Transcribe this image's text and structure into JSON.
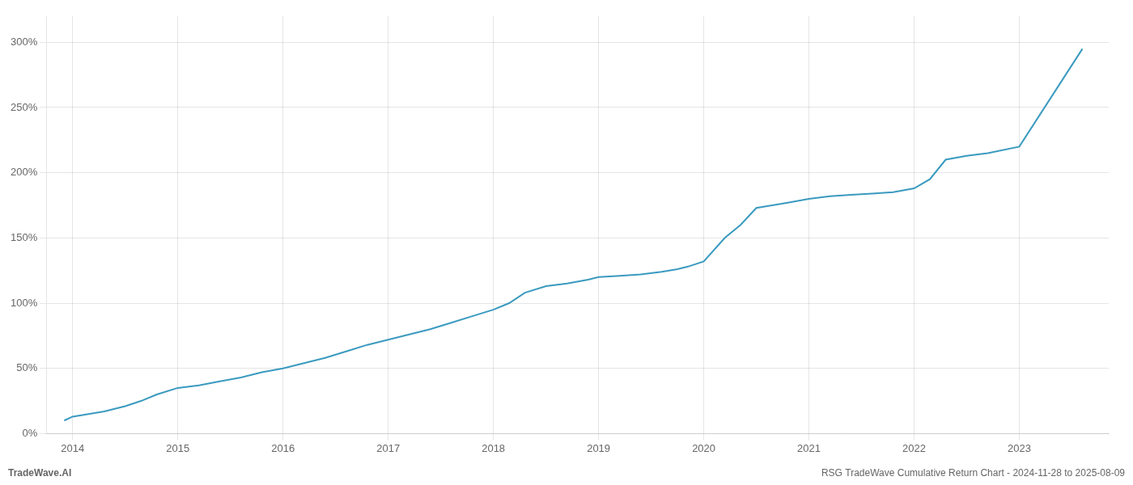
{
  "chart_data": {
    "type": "line",
    "x": [
      2013.92,
      2014.0,
      2014.15,
      2014.3,
      2014.5,
      2014.65,
      2014.8,
      2015.0,
      2015.2,
      2015.4,
      2015.6,
      2015.8,
      2016.0,
      2016.2,
      2016.4,
      2016.6,
      2016.8,
      2017.0,
      2017.2,
      2017.4,
      2017.6,
      2017.8,
      2018.0,
      2018.15,
      2018.3,
      2018.5,
      2018.7,
      2018.9,
      2019.0,
      2019.2,
      2019.4,
      2019.6,
      2019.75,
      2019.85,
      2020.0,
      2020.2,
      2020.35,
      2020.5,
      2020.65,
      2020.8,
      2021.0,
      2021.2,
      2021.4,
      2021.6,
      2021.8,
      2022.0,
      2022.15,
      2022.3,
      2022.5,
      2022.7,
      2023.0,
      2023.6
    ],
    "values": [
      10,
      13,
      15,
      17,
      21,
      25,
      30,
      35,
      37,
      40,
      43,
      47,
      50,
      54,
      58,
      63,
      68,
      72,
      76,
      80,
      85,
      90,
      95,
      100,
      108,
      113,
      115,
      118,
      120,
      121,
      122,
      124,
      126,
      128,
      132,
      150,
      160,
      173,
      175,
      177,
      180,
      182,
      183,
      184,
      185,
      188,
      195,
      210,
      213,
      215,
      220,
      295
    ],
    "color": "#3a9abf",
    "xlim": [
      2013.75,
      2023.85
    ],
    "xticks": [
      2014,
      2015,
      2016,
      2017,
      2018,
      2019,
      2020,
      2021,
      2022,
      2023
    ],
    "ylim": [
      0,
      320
    ],
    "yticks": [
      {
        "value": 0,
        "label": "0%"
      },
      {
        "value": 50,
        "label": "50%"
      },
      {
        "value": 100,
        "label": "100%"
      },
      {
        "value": 150,
        "label": "150%"
      },
      {
        "value": 200,
        "label": "200%"
      },
      {
        "value": 250,
        "label": "250%"
      },
      {
        "value": 300,
        "label": "300%"
      }
    ],
    "grid": true,
    "annotations": [
      "TradeWave.AI",
      "RSG TradeWave Cumulative Return Chart - 2024-11-28 to 2025-08-09"
    ]
  }
}
